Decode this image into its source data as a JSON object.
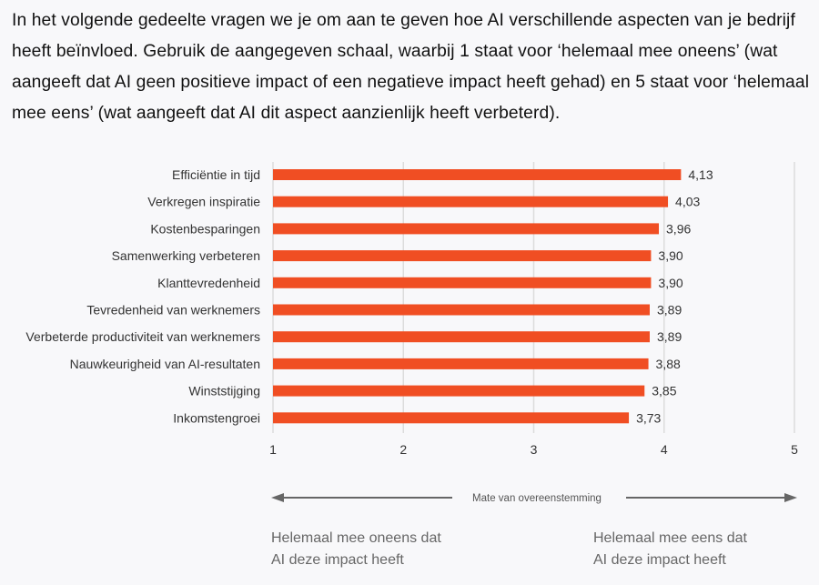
{
  "intro": "In het volgende gedeelte vragen we je om aan te geven hoe AI verschillende aspecten van je bedrijf heeft beïnvloed. Gebruik de aangegeven schaal, waarbij 1 staat voor ‘helemaal mee oneens’ (wat aangeeft dat AI geen positieve impact of een negatieve impact heeft gehad) en 5 staat voor ‘helemaal mee eens’ (wat aangeeft dat AI dit aspect aanzienlijk heeft verbeterd).",
  "chart_data": {
    "type": "bar",
    "orientation": "horizontal",
    "categories": [
      "Efficiëntie in tijd",
      "Verkregen inspiratie",
      "Kostenbesparingen",
      "Samenwerking verbeteren",
      "Klanttevredenheid",
      "Tevredenheid van werknemers",
      "Verbeterde productiviteit van werknemers",
      "Nauwkeurigheid van AI-resultaten",
      "Winststijging",
      "Inkomstengroei"
    ],
    "values": [
      4.13,
      4.03,
      3.96,
      3.9,
      3.9,
      3.89,
      3.89,
      3.88,
      3.85,
      3.73
    ],
    "value_labels": [
      "4,13",
      "4,03",
      "3,96",
      "3,90",
      "3,90",
      "3,89",
      "3,89",
      "3,88",
      "3,85",
      "3,73"
    ],
    "xlim": [
      1,
      5
    ],
    "xticks": [
      "1",
      "2",
      "3",
      "4",
      "5"
    ],
    "xlabel": "Mate van overeenstemming",
    "grid": true,
    "bar_color": "#f04e23",
    "low_label": [
      "Helemaal mee oneens dat",
      "AI deze impact heeft"
    ],
    "high_label": [
      "Helemaal mee eens dat",
      "AI deze impact heeft"
    ]
  }
}
